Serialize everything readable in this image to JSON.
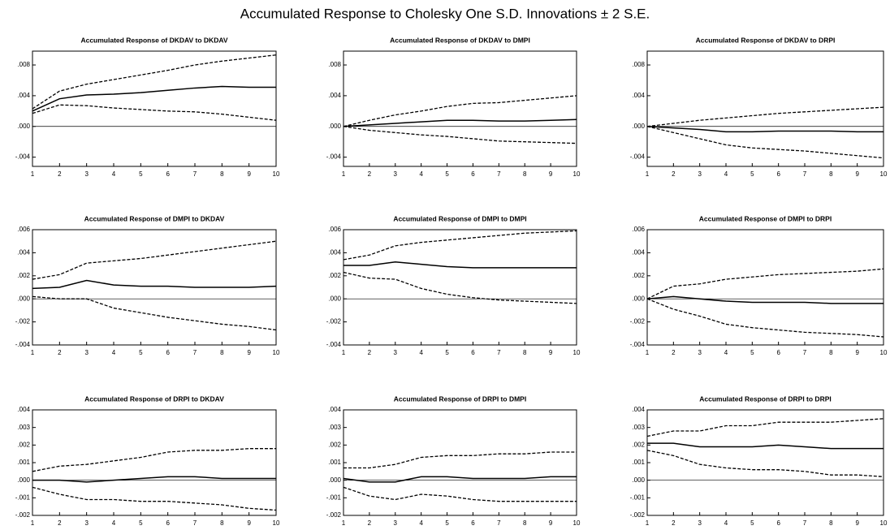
{
  "title": "Accumulated Response to Cholesky One S.D. Innovations ± 2 S.E.",
  "chart_data": [
    {
      "type": "line",
      "title": "Accumulated Response of DKDAV to DKDAV",
      "x": [
        1,
        2,
        3,
        4,
        5,
        6,
        7,
        8,
        9,
        10
      ],
      "xlim": [
        1,
        10
      ],
      "xticks": [
        1,
        2,
        3,
        4,
        5,
        6,
        7,
        8,
        9,
        10
      ],
      "ylim": [
        -0.0052,
        0.0098
      ],
      "yticks": [
        {
          "value": -0.004,
          "label": "-.004"
        },
        {
          "value": 0,
          "label": ".000"
        },
        {
          "value": 0.004,
          "label": ".004"
        },
        {
          "value": 0.008,
          "label": ".008"
        }
      ],
      "series": [
        {
          "color": "#000000",
          "style": "solid",
          "values": [
            0.002,
            0.0036,
            0.0041,
            0.0042,
            0.0044,
            0.0047,
            0.005,
            0.0052,
            0.0051,
            0.0051
          ]
        },
        {
          "color": "#000000",
          "style": "dashed",
          "values": [
            0.0023,
            0.0046,
            0.0055,
            0.0061,
            0.0067,
            0.0073,
            0.008,
            0.0085,
            0.0089,
            0.0093
          ]
        },
        {
          "color": "#000000",
          "style": "dashed",
          "values": [
            0.0017,
            0.0028,
            0.0027,
            0.0024,
            0.0022,
            0.002,
            0.0019,
            0.0016,
            0.0012,
            0.0008
          ]
        }
      ]
    },
    {
      "type": "line",
      "title": "Accumulated Response of DKDAV to DMPI",
      "x": [
        1,
        2,
        3,
        4,
        5,
        6,
        7,
        8,
        9,
        10
      ],
      "xlim": [
        1,
        10
      ],
      "xticks": [
        1,
        2,
        3,
        4,
        5,
        6,
        7,
        8,
        9,
        10
      ],
      "ylim": [
        -0.0052,
        0.0098
      ],
      "yticks": [
        {
          "value": -0.004,
          "label": "-.004"
        },
        {
          "value": 0,
          "label": ".000"
        },
        {
          "value": 0.004,
          "label": ".004"
        },
        {
          "value": 0.008,
          "label": ".008"
        }
      ],
      "series": [
        {
          "color": "#000000",
          "style": "solid",
          "values": [
            0,
            0.0002,
            0.0004,
            0.0006,
            0.0008,
            0.0008,
            0.0007,
            0.0007,
            0.0008,
            0.0009
          ]
        },
        {
          "color": "#000000",
          "style": "dashed",
          "values": [
            0,
            0.0008,
            0.0015,
            0.002,
            0.0026,
            0.003,
            0.0031,
            0.0034,
            0.0037,
            0.004
          ]
        },
        {
          "color": "#000000",
          "style": "dashed",
          "values": [
            0,
            -0.0005,
            -0.0008,
            -0.0011,
            -0.0013,
            -0.0016,
            -0.0019,
            -0.002,
            -0.0021,
            -0.0022
          ]
        }
      ]
    },
    {
      "type": "line",
      "title": "Accumulated Response of DKDAV to DRPI",
      "x": [
        1,
        2,
        3,
        4,
        5,
        6,
        7,
        8,
        9,
        10
      ],
      "xlim": [
        1,
        10
      ],
      "xticks": [
        1,
        2,
        3,
        4,
        5,
        6,
        7,
        8,
        9,
        10
      ],
      "ylim": [
        -0.0052,
        0.0098
      ],
      "yticks": [
        {
          "value": -0.004,
          "label": "-.004"
        },
        {
          "value": 0,
          "label": ".000"
        },
        {
          "value": 0.004,
          "label": ".004"
        },
        {
          "value": 0.008,
          "label": ".008"
        }
      ],
      "series": [
        {
          "color": "#000000",
          "style": "solid",
          "values": [
            0,
            -0.0002,
            -0.0004,
            -0.0007,
            -0.0007,
            -0.0006,
            -0.0006,
            -0.0006,
            -0.0007,
            -0.0007
          ]
        },
        {
          "color": "#000000",
          "style": "dashed",
          "values": [
            0,
            0.0004,
            0.0008,
            0.0011,
            0.0014,
            0.0017,
            0.0019,
            0.0021,
            0.0023,
            0.0025
          ]
        },
        {
          "color": "#000000",
          "style": "dashed",
          "values": [
            0,
            -0.0008,
            -0.0016,
            -0.0024,
            -0.0028,
            -0.003,
            -0.0032,
            -0.0035,
            -0.0038,
            -0.0041
          ]
        }
      ]
    },
    {
      "type": "line",
      "title": "Accumulated Response of DMPI to DKDAV",
      "x": [
        1,
        2,
        3,
        4,
        5,
        6,
        7,
        8,
        9,
        10
      ],
      "xlim": [
        1,
        10
      ],
      "xticks": [
        1,
        2,
        3,
        4,
        5,
        6,
        7,
        8,
        9,
        10
      ],
      "ylim": [
        -0.004,
        0.006
      ],
      "yticks": [
        {
          "value": -0.004,
          "label": "-.004"
        },
        {
          "value": -0.002,
          "label": "-.002"
        },
        {
          "value": 0,
          "label": ".000"
        },
        {
          "value": 0.002,
          "label": ".002"
        },
        {
          "value": 0.004,
          "label": ".004"
        },
        {
          "value": 0.006,
          "label": ".006"
        }
      ],
      "series": [
        {
          "color": "#000000",
          "style": "solid",
          "values": [
            0.0009,
            0.001,
            0.0016,
            0.0012,
            0.0011,
            0.0011,
            0.001,
            0.001,
            0.001,
            0.0011
          ]
        },
        {
          "color": "#000000",
          "style": "dashed",
          "values": [
            0.0017,
            0.0021,
            0.0031,
            0.0033,
            0.0035,
            0.0038,
            0.0041,
            0.0044,
            0.0047,
            0.005
          ]
        },
        {
          "color": "#000000",
          "style": "dashed",
          "values": [
            0.0002,
            0,
            0,
            -0.0008,
            -0.0012,
            -0.0016,
            -0.0019,
            -0.0022,
            -0.0024,
            -0.0027
          ]
        }
      ]
    },
    {
      "type": "line",
      "title": "Accumulated Response of DMPI to DMPI",
      "x": [
        1,
        2,
        3,
        4,
        5,
        6,
        7,
        8,
        9,
        10
      ],
      "xlim": [
        1,
        10
      ],
      "xticks": [
        1,
        2,
        3,
        4,
        5,
        6,
        7,
        8,
        9,
        10
      ],
      "ylim": [
        -0.004,
        0.006
      ],
      "yticks": [
        {
          "value": -0.004,
          "label": "-.004"
        },
        {
          "value": -0.002,
          "label": "-.002"
        },
        {
          "value": 0,
          "label": ".000"
        },
        {
          "value": 0.002,
          "label": ".002"
        },
        {
          "value": 0.004,
          "label": ".004"
        },
        {
          "value": 0.006,
          "label": ".006"
        }
      ],
      "series": [
        {
          "color": "#000000",
          "style": "solid",
          "values": [
            0.0029,
            0.0029,
            0.0032,
            0.003,
            0.0028,
            0.0027,
            0.0027,
            0.0027,
            0.0027,
            0.0027
          ]
        },
        {
          "color": "#000000",
          "style": "dashed",
          "values": [
            0.0034,
            0.0038,
            0.0046,
            0.0049,
            0.0051,
            0.0053,
            0.0055,
            0.0057,
            0.0058,
            0.0059
          ]
        },
        {
          "color": "#000000",
          "style": "dashed",
          "values": [
            0.0023,
            0.0018,
            0.0017,
            0.0009,
            0.0004,
            0.0001,
            -0.0001,
            -0.0002,
            -0.0003,
            -0.0004
          ]
        }
      ]
    },
    {
      "type": "line",
      "title": "Accumulated Response of DMPI to DRPI",
      "x": [
        1,
        2,
        3,
        4,
        5,
        6,
        7,
        8,
        9,
        10
      ],
      "xlim": [
        1,
        10
      ],
      "xticks": [
        1,
        2,
        3,
        4,
        5,
        6,
        7,
        8,
        9,
        10
      ],
      "ylim": [
        -0.004,
        0.006
      ],
      "yticks": [
        {
          "value": -0.004,
          "label": "-.004"
        },
        {
          "value": -0.002,
          "label": "-.002"
        },
        {
          "value": 0,
          "label": ".000"
        },
        {
          "value": 0.002,
          "label": ".002"
        },
        {
          "value": 0.004,
          "label": ".004"
        },
        {
          "value": 0.006,
          "label": ".006"
        }
      ],
      "series": [
        {
          "color": "#000000",
          "style": "solid",
          "values": [
            0,
            0.0002,
            0,
            -0.0002,
            -0.0003,
            -0.0003,
            -0.0003,
            -0.0004,
            -0.0004,
            -0.0004
          ]
        },
        {
          "color": "#000000",
          "style": "dashed",
          "values": [
            0,
            0.0011,
            0.0013,
            0.0017,
            0.0019,
            0.0021,
            0.0022,
            0.0023,
            0.0024,
            0.0026
          ]
        },
        {
          "color": "#000000",
          "style": "dashed",
          "values": [
            0,
            -0.0009,
            -0.0015,
            -0.0022,
            -0.0025,
            -0.0027,
            -0.0029,
            -0.003,
            -0.0031,
            -0.0033
          ]
        }
      ]
    },
    {
      "type": "line",
      "title": "Accumulated Response of DRPI to DKDAV",
      "x": [
        1,
        2,
        3,
        4,
        5,
        6,
        7,
        8,
        9,
        10
      ],
      "xlim": [
        1,
        10
      ],
      "xticks": [
        1,
        2,
        3,
        4,
        5,
        6,
        7,
        8,
        9,
        10
      ],
      "ylim": [
        -0.002,
        0.004
      ],
      "yticks": [
        {
          "value": -0.002,
          "label": "-.002"
        },
        {
          "value": -0.001,
          "label": "-.001"
        },
        {
          "value": 0,
          "label": ".000"
        },
        {
          "value": 0.001,
          "label": ".001"
        },
        {
          "value": 0.002,
          "label": ".002"
        },
        {
          "value": 0.003,
          "label": ".003"
        },
        {
          "value": 0.004,
          "label": ".004"
        }
      ],
      "series": [
        {
          "color": "#000000",
          "style": "solid",
          "values": [
            0,
            0,
            -0.0001,
            0,
            0.0001,
            0.0002,
            0.0002,
            0.0001,
            0.0001,
            0.0001
          ]
        },
        {
          "color": "#000000",
          "style": "dashed",
          "values": [
            0.0005,
            0.0008,
            0.0009,
            0.0011,
            0.0013,
            0.0016,
            0.0017,
            0.0017,
            0.0018,
            0.0018
          ]
        },
        {
          "color": "#000000",
          "style": "dashed",
          "values": [
            -0.0004,
            -0.0008,
            -0.0011,
            -0.0011,
            -0.0012,
            -0.0012,
            -0.0013,
            -0.0014,
            -0.0016,
            -0.0017
          ]
        }
      ]
    },
    {
      "type": "line",
      "title": "Accumulated Response of DRPI to DMPI",
      "x": [
        1,
        2,
        3,
        4,
        5,
        6,
        7,
        8,
        9,
        10
      ],
      "xlim": [
        1,
        10
      ],
      "xticks": [
        1,
        2,
        3,
        4,
        5,
        6,
        7,
        8,
        9,
        10
      ],
      "ylim": [
        -0.002,
        0.004
      ],
      "yticks": [
        {
          "value": -0.002,
          "label": "-.002"
        },
        {
          "value": -0.001,
          "label": "-.001"
        },
        {
          "value": 0,
          "label": ".000"
        },
        {
          "value": 0.001,
          "label": ".001"
        },
        {
          "value": 0.002,
          "label": ".002"
        },
        {
          "value": 0.003,
          "label": ".003"
        },
        {
          "value": 0.004,
          "label": ".004"
        }
      ],
      "series": [
        {
          "color": "#000000",
          "style": "solid",
          "values": [
            0.0001,
            -0.0001,
            -0.0001,
            0.0002,
            0.0002,
            0.0001,
            0.0001,
            0.0001,
            0.0002,
            0.0002
          ]
        },
        {
          "color": "#000000",
          "style": "dashed",
          "values": [
            0.0007,
            0.0007,
            0.0009,
            0.0013,
            0.0014,
            0.0014,
            0.0015,
            0.0015,
            0.0016,
            0.0016
          ]
        },
        {
          "color": "#000000",
          "style": "dashed",
          "values": [
            -0.0004,
            -0.0009,
            -0.0011,
            -0.0008,
            -0.0009,
            -0.0011,
            -0.0012,
            -0.0012,
            -0.0012,
            -0.0012
          ]
        }
      ]
    },
    {
      "type": "line",
      "title": "Accumulated Response of DRPI to DRPI",
      "x": [
        1,
        2,
        3,
        4,
        5,
        6,
        7,
        8,
        9,
        10
      ],
      "xlim": [
        1,
        10
      ],
      "xticks": [
        1,
        2,
        3,
        4,
        5,
        6,
        7,
        8,
        9,
        10
      ],
      "ylim": [
        -0.002,
        0.004
      ],
      "yticks": [
        {
          "value": -0.002,
          "label": "-.002"
        },
        {
          "value": -0.001,
          "label": "-.001"
        },
        {
          "value": 0,
          "label": ".000"
        },
        {
          "value": 0.001,
          "label": ".001"
        },
        {
          "value": 0.002,
          "label": ".002"
        },
        {
          "value": 0.003,
          "label": ".003"
        },
        {
          "value": 0.004,
          "label": ".004"
        }
      ],
      "series": [
        {
          "color": "#000000",
          "style": "solid",
          "values": [
            0.0021,
            0.0021,
            0.0019,
            0.0019,
            0.0019,
            0.002,
            0.0019,
            0.0018,
            0.0018,
            0.0018
          ]
        },
        {
          "color": "#000000",
          "style": "dashed",
          "values": [
            0.0025,
            0.0028,
            0.0028,
            0.0031,
            0.0031,
            0.0033,
            0.0033,
            0.0033,
            0.0034,
            0.0035
          ]
        },
        {
          "color": "#000000",
          "style": "dashed",
          "values": [
            0.0017,
            0.0014,
            0.0009,
            0.0007,
            0.0006,
            0.0006,
            0.0005,
            0.0003,
            0.0003,
            0.0002
          ]
        }
      ]
    }
  ]
}
